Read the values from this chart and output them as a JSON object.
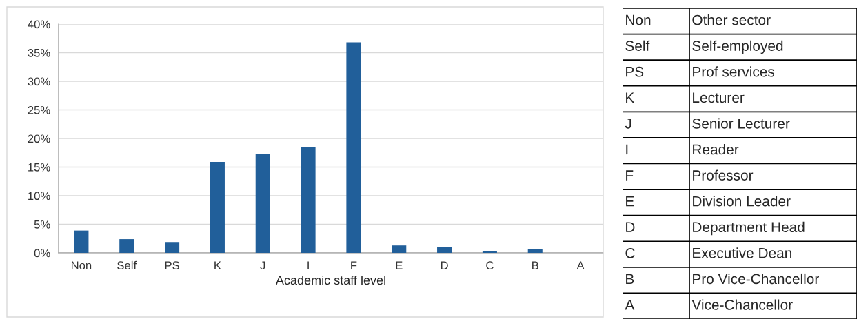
{
  "chart_data": [
    {
      "type": "bar",
      "xlabel": "Academic staff level",
      "categories": [
        "Non",
        "Self",
        "PS",
        "K",
        "J",
        "I",
        "F",
        "E",
        "D",
        "C",
        "B",
        "A"
      ],
      "values": [
        3.9,
        2.4,
        1.9,
        15.9,
        17.3,
        18.5,
        36.8,
        1.3,
        1.0,
        0.3,
        0.6,
        0
      ],
      "color": "#215f9a",
      "ylim": [
        0,
        40
      ],
      "yticks": [
        {
          "value": 0,
          "label": "0%"
        },
        {
          "value": 5,
          "label": "5%"
        },
        {
          "value": 10,
          "label": "10%"
        },
        {
          "value": 15,
          "label": "15%"
        },
        {
          "value": 20,
          "label": "20%"
        },
        {
          "value": 25,
          "label": "25%"
        },
        {
          "value": 30,
          "label": "30%"
        },
        {
          "value": 35,
          "label": "35%"
        },
        {
          "value": 40,
          "label": "40%"
        }
      ],
      "grid": "y"
    },
    {
      "type": "other",
      "annotations": [
        "Non",
        "Other sector",
        "Self",
        "Self-employed",
        "PS",
        "Prof services",
        "K",
        "Lecturer",
        "J",
        "Senior Lecturer",
        "I",
        "Reader",
        "F",
        "Professor",
        "E",
        "Division Leader",
        "D",
        "Department Head",
        "C",
        "Executive Dean",
        "B",
        "Pro Vice-Chancellor",
        "A",
        "Vice-Chancellor"
      ]
    }
  ]
}
